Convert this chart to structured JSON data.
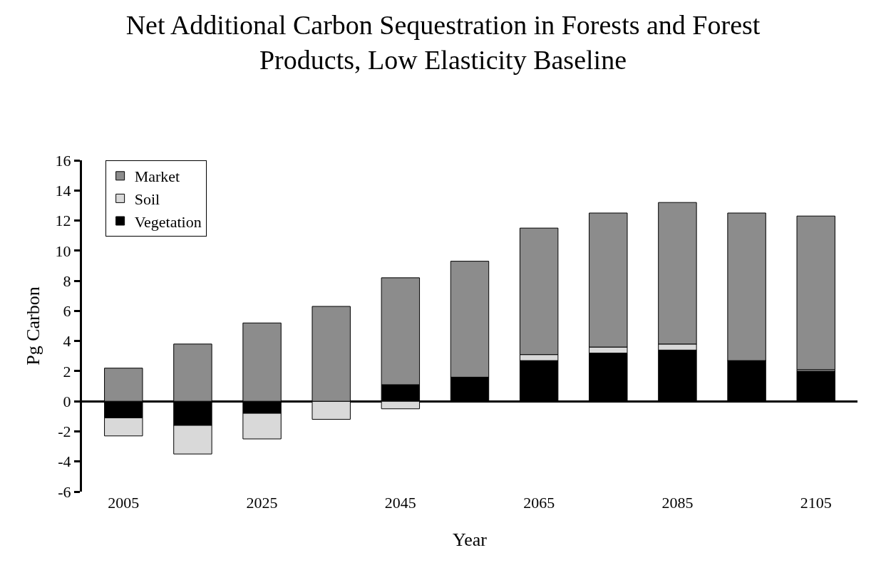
{
  "chart_data": {
    "type": "bar",
    "title": "Net Additional Carbon Sequestration in Forests and Forest Products, Low Elasticity Baseline",
    "xlabel": "Year",
    "ylabel": "Pg Carbon",
    "categories": [
      "2005",
      null,
      "2025",
      null,
      "2045",
      null,
      "2065",
      null,
      "2085",
      null,
      "2105"
    ],
    "stacked": true,
    "series": [
      {
        "name": "Vegetation",
        "color": "#000000",
        "values": [
          -1.1,
          -1.6,
          -0.8,
          0,
          1.1,
          1.6,
          2.7,
          3.2,
          3.4,
          2.7,
          2.0
        ]
      },
      {
        "name": "Soil",
        "color": "#d9d9d9",
        "values": [
          -1.2,
          -1.9,
          -1.7,
          -1.2,
          -0.5,
          0,
          0.4,
          0.4,
          0.4,
          0,
          0.1
        ]
      },
      {
        "name": "Market",
        "color": "#8c8c8c",
        "values": [
          2.2,
          3.8,
          5.2,
          6.3,
          7.1,
          7.7,
          8.4,
          8.9,
          9.4,
          9.8,
          10.2
        ]
      }
    ],
    "ylim": [
      -6,
      16
    ],
    "yticks": [
      -6,
      -4,
      -2,
      0,
      2,
      4,
      6,
      8,
      10,
      12,
      14,
      16
    ],
    "legend": "top left"
  }
}
